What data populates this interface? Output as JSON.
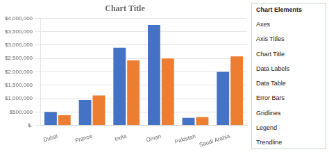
{
  "chart_data": {
    "type": "bar",
    "title": "Chart Title",
    "categories": [
      "Dubai",
      "France",
      "India",
      "Oman",
      "Pakistan",
      "Saudi Arabia"
    ],
    "series": [
      {
        "color": "#4472C4",
        "values": [
          500000,
          950000,
          2900000,
          3750000,
          280000,
          2000000
        ]
      },
      {
        "color": "#ED7D31",
        "values": [
          380000,
          1120000,
          2430000,
          2500000,
          310000,
          2580000
        ]
      }
    ],
    "ylim": [
      0,
      4000000
    ],
    "yticks": [
      {
        "value": 0,
        "label": "$-"
      },
      {
        "value": 500000,
        "label": "$500,000"
      },
      {
        "value": 1000000,
        "label": "$1,000,000"
      },
      {
        "value": 1500000,
        "label": "$1,500,000"
      },
      {
        "value": 2000000,
        "label": "$2,000,000"
      },
      {
        "value": 2500000,
        "label": "$2,500,000"
      },
      {
        "value": 3000000,
        "label": "$3,000,000"
      },
      {
        "value": 3500000,
        "label": "$3,500,000"
      },
      {
        "value": 4000000,
        "label": "$4,000,000"
      }
    ],
    "grid": true,
    "annotations": [
      "Chart Elements",
      "Axes",
      "Axis Titles",
      "Chart Title",
      "Data Labels",
      "Data Table",
      "Error Bars",
      "Gridlines",
      "Legend",
      "Trendline"
    ]
  }
}
